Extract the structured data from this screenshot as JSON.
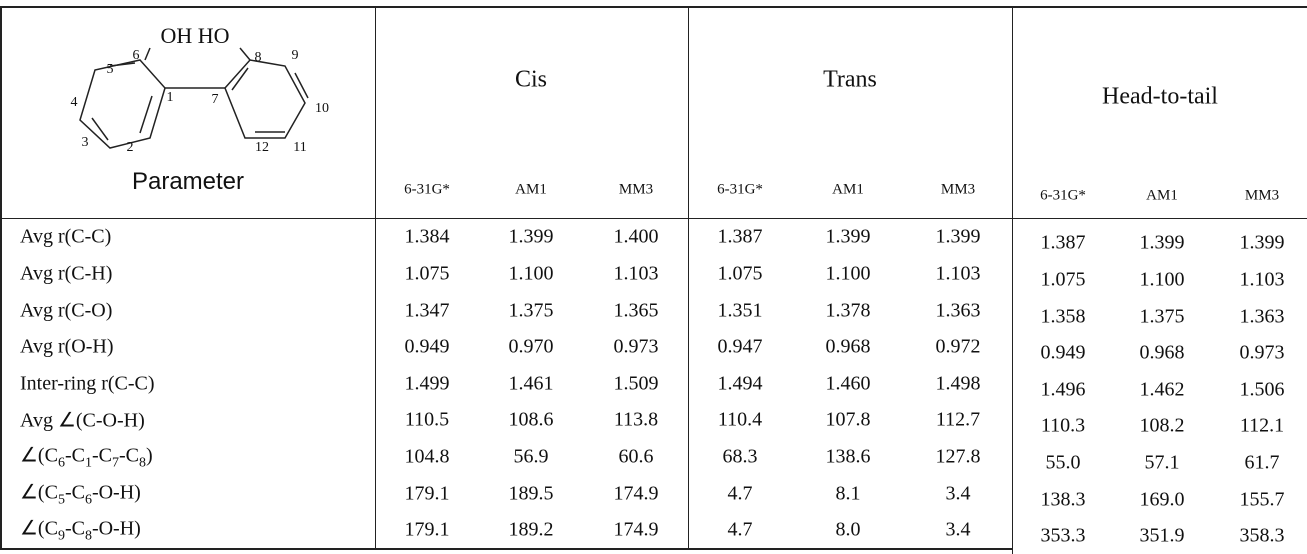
{
  "diagram": {
    "labels": [
      "OH HO",
      "5",
      "6",
      "4",
      "1",
      "7",
      "8",
      "9",
      "10",
      "3",
      "2",
      "12",
      "11"
    ]
  },
  "header": {
    "parameter": "Parameter",
    "groups": [
      "Cis",
      "Trans",
      "Head-to-tail"
    ],
    "methods": [
      "6-31G*",
      "AM1",
      "MM3",
      "6-31G*",
      "AM1",
      "MM3",
      "6-31G*",
      "AM1",
      "MM3"
    ]
  },
  "table": {
    "rows": [
      {
        "label": [
          "Avg r(C-C)"
        ],
        "values": [
          "1.384",
          "1.399",
          "1.400",
          "1.387",
          "1.399",
          "1.399",
          "1.387",
          "1.399",
          "1.399"
        ]
      },
      {
        "label": [
          "Avg r(C-H)"
        ],
        "values": [
          "1.075",
          "1.100",
          "1.103",
          "1.075",
          "1.100",
          "1.103",
          "1.075",
          "1.100",
          "1.103"
        ]
      },
      {
        "label": [
          "Avg r(C-O)"
        ],
        "values": [
          "1.347",
          "1.375",
          "1.365",
          "1.351",
          "1.378",
          "1.363",
          "1.358",
          "1.375",
          "1.363"
        ]
      },
      {
        "label": [
          "Avg r(O-H)"
        ],
        "values": [
          "0.949",
          "0.970",
          "0.973",
          "0.947",
          "0.968",
          "0.972",
          "0.949",
          "0.968",
          "0.973"
        ]
      },
      {
        "label": [
          "Inter-ring r(C-C)"
        ],
        "values": [
          "1.499",
          "1.461",
          "1.509",
          "1.494",
          "1.460",
          "1.498",
          "1.496",
          "1.462",
          "1.506"
        ]
      },
      {
        "label": [
          "Avg ∠(C-O-H)"
        ],
        "values": [
          "110.5",
          "108.6",
          "113.8",
          "110.4",
          "107.8",
          "112.7",
          "110.3",
          "108.2",
          "112.1"
        ]
      },
      {
        "label": [
          "∠(C",
          {
            "sub": "6"
          },
          "-C",
          {
            "sub": "1"
          },
          "-C",
          {
            "sub": "7"
          },
          "-C",
          {
            "sub": "8"
          },
          ")"
        ],
        "values": [
          "104.8",
          "56.9",
          "60.6",
          "68.3",
          "138.6",
          "127.8",
          "55.0",
          "57.1",
          "61.7"
        ]
      },
      {
        "label": [
          "∠(C",
          {
            "sub": "5"
          },
          "-C",
          {
            "sub": "6"
          },
          "-O-H)"
        ],
        "values": [
          "179.1",
          "189.5",
          "174.9",
          "4.7",
          "8.1",
          "3.4",
          "138.3",
          "169.0",
          "155.7"
        ]
      },
      {
        "label": [
          "∠(C",
          {
            "sub": "9"
          },
          "-C",
          {
            "sub": "8"
          },
          "-O-H)"
        ],
        "values": [
          "179.1",
          "189.2",
          "174.9",
          "4.7",
          "8.0",
          "3.4",
          "353.3",
          "351.9",
          "358.3"
        ]
      }
    ]
  }
}
